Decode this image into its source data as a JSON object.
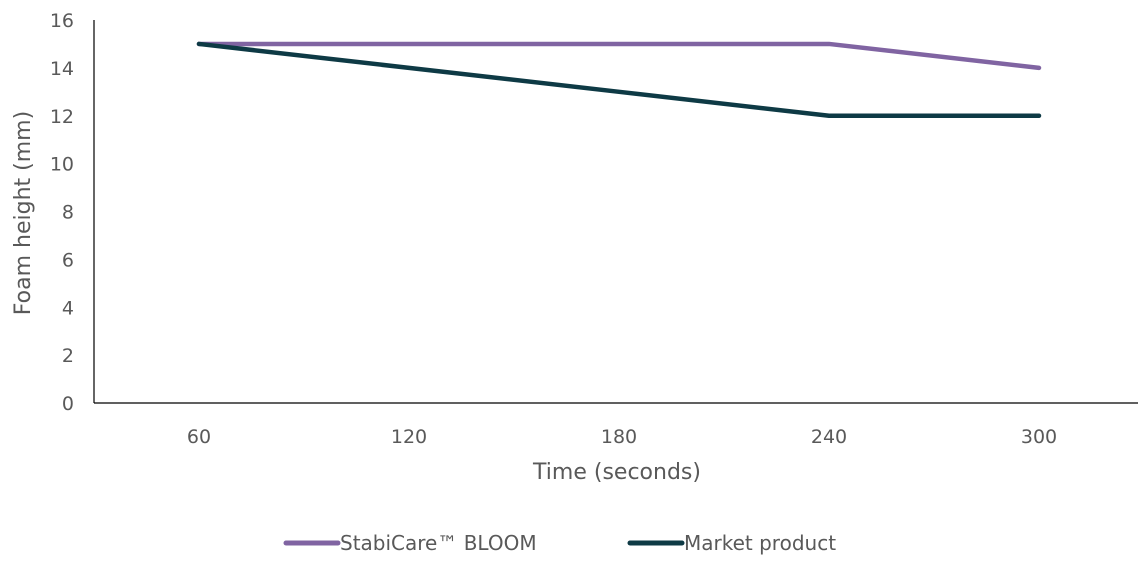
{
  "chart_data": {
    "type": "line",
    "title": "",
    "xlabel": "Time (seconds)",
    "ylabel": "Foam height (mm)",
    "categories": [
      "60",
      "120",
      "180",
      "240",
      "300"
    ],
    "ylim": [
      0,
      16
    ],
    "yticks": [
      "0",
      "2",
      "4",
      "6",
      "8",
      "10",
      "12",
      "14",
      "16"
    ],
    "grid": false,
    "legend_position": "bottom",
    "series": [
      {
        "name": "StabiCare™ BLOOM",
        "values": [
          15,
          15,
          15,
          15,
          14
        ],
        "color": "#8064a2"
      },
      {
        "name": "Market product",
        "values": [
          15,
          14,
          13,
          12,
          12
        ],
        "color": "#0e3a45"
      }
    ]
  },
  "colors": {
    "axis": "#000000",
    "text": "#595959"
  }
}
